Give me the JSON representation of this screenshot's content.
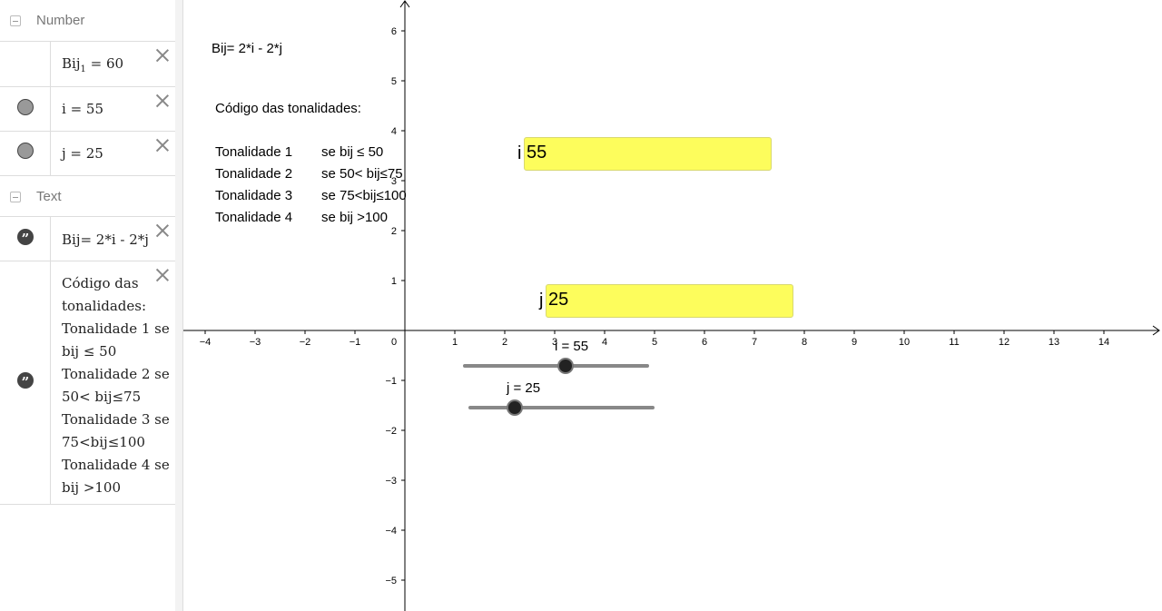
{
  "algebra": {
    "groups": [
      {
        "label": "Number"
      },
      {
        "label": "Text"
      }
    ],
    "number_items": [
      {
        "name": "Bij",
        "subscript": "1",
        "rest": " = 60"
      },
      {
        "text": "i = 55"
      },
      {
        "text": "j = 25"
      }
    ],
    "text_items": [
      {
        "text": "Bij= 2*i - 2*j"
      },
      {
        "lines": [
          "Código das",
          "tonalidades:",
          "Tonalidade 1 se",
          "bij ≤ 50",
          "Tonalidade 2 se",
          "50< bij≤75",
          "Tonalidade 3 se",
          "75<bij≤100",
          "Tonalidade 4 se",
          "bij >100"
        ]
      }
    ]
  },
  "graphics": {
    "formula": "Bij= 2*i - 2*j",
    "code_title": "Código das tonalidades:",
    "tonalities": [
      {
        "name": "Tonalidade 1",
        "rule": "se bij ≤ 50"
      },
      {
        "name": "Tonalidade 2",
        "rule": "se 50< bij≤75"
      },
      {
        "name": "Tonalidade 3",
        "rule": "se 75<bij≤100"
      },
      {
        "name": "Tonalidade 4",
        "rule": "se bij >100"
      }
    ],
    "input_i": {
      "label": "i",
      "value": "55"
    },
    "input_j": {
      "label": "j",
      "value": "25"
    },
    "slider_i": {
      "label": "i = 55",
      "fraction": 0.55
    },
    "slider_j": {
      "label": "j = 25",
      "fraction": 0.25
    },
    "x_ticks": [
      "−4",
      "−3",
      "−2",
      "−1",
      "0",
      "1",
      "2",
      "3",
      "4",
      "5",
      "6",
      "7",
      "8",
      "9",
      "10",
      "11",
      "12",
      "13",
      "14"
    ],
    "y_ticks_pos": [
      "1",
      "2",
      "3",
      "4",
      "5",
      "6"
    ],
    "y_ticks_neg": [
      "−1",
      "−2",
      "−3",
      "−4",
      "−5"
    ]
  },
  "colors": {
    "input_fill": "#fdfd5c",
    "axis": "#000000"
  }
}
